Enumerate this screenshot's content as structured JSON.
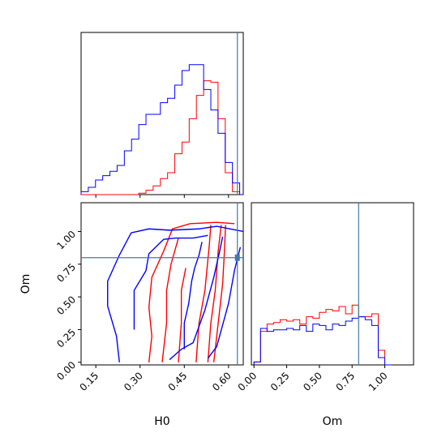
{
  "chart_data": {
    "type": "corner",
    "parameters": [
      "H0",
      "Om"
    ],
    "truth": {
      "H0": 0.63,
      "Om": 0.8
    },
    "truth_color": "#4477aa",
    "series": [
      {
        "color": "#ff0000"
      },
      {
        "color": "#0000ff"
      }
    ],
    "panels": [
      {
        "panel": "H0-marginal",
        "xlim": [
          0.1,
          0.65
        ],
        "bins": [
          0.1,
          0.1244,
          0.1489,
          0.1733,
          0.1978,
          0.2222,
          0.2467,
          0.2711,
          0.2956,
          0.32,
          0.3444,
          0.3689,
          0.3933,
          0.4178,
          0.4422,
          0.4667,
          0.4911,
          0.5156,
          0.54,
          0.5644,
          0.5889,
          0.6133,
          0.6378,
          0.65
        ],
        "series_counts": [
          {
            "color": "#ff0000",
            "counts": [
              0,
              0,
              0,
              0,
              0,
              0,
              0,
              0,
              0.01,
              0.03,
              0.06,
              0.11,
              0.15,
              0.28,
              0.36,
              0.52,
              0.68,
              0.78,
              0.77,
              0.52,
              0.15,
              0.02,
              0
            ]
          },
          {
            "color": "#0000ff",
            "counts": [
              0.02,
              0.05,
              0.1,
              0.13,
              0.16,
              0.2,
              0.3,
              0.38,
              0.48,
              0.55,
              0.55,
              0.63,
              0.66,
              0.75,
              0.85,
              0.89,
              0.89,
              0.72,
              0.58,
              0.42,
              0.22,
              0.08,
              0
            ]
          }
        ]
      },
      {
        "panel": "Om-marginal",
        "xlim": [
          -0.02,
          1.22
        ],
        "bins": [
          0.0,
          0.05,
          0.1,
          0.15,
          0.2,
          0.25,
          0.3,
          0.35,
          0.4,
          0.45,
          0.5,
          0.55,
          0.6,
          0.65,
          0.7,
          0.75,
          0.8,
          0.85,
          0.9,
          0.95,
          1.0,
          1.05
        ],
        "series_counts": [
          {
            "color": "#ff0000",
            "counts": [
              0.02,
              0.23,
              0.28,
              0.29,
              0.31,
              0.3,
              0.31,
              0.28,
              0.33,
              0.32,
              0.36,
              0.38,
              0.37,
              0.4,
              0.35,
              0.41,
              0.33,
              0.33,
              0.35,
              0.1,
              0
            ]
          },
          {
            "color": "#0000ff",
            "counts": [
              0.02,
              0.25,
              0.23,
              0.24,
              0.24,
              0.25,
              0.24,
              0.27,
              0.23,
              0.28,
              0.27,
              0.24,
              0.28,
              0.27,
              0.3,
              0.32,
              0.33,
              0.31,
              0.27,
              0.05,
              0
            ]
          }
        ]
      },
      {
        "panel": "H0-Om-joint",
        "xlim": [
          0.1,
          0.65
        ],
        "ylim": [
          -0.02,
          1.22
        ],
        "contours": [
          {
            "color": "#ff0000",
            "points": [
              [
                0.33,
                0.0
              ],
              [
                0.34,
                0.2
              ],
              [
                0.33,
                0.42
              ],
              [
                0.34,
                0.65
              ],
              [
                0.38,
                0.85
              ],
              [
                0.41,
                1.02
              ],
              [
                0.47,
                1.06
              ],
              [
                0.56,
                1.07
              ],
              [
                0.62,
                1.06
              ]
            ]
          },
          {
            "color": "#ff0000",
            "points": [
              [
                0.375,
                0.0
              ],
              [
                0.39,
                0.3
              ],
              [
                0.39,
                0.55
              ],
              [
                0.405,
                0.75
              ],
              [
                0.43,
                0.95
              ]
            ]
          },
          {
            "color": "#ff0000",
            "points": [
              [
                0.43,
                0.0
              ],
              [
                0.44,
                0.3
              ],
              [
                0.44,
                0.55
              ],
              [
                0.455,
                0.72
              ]
            ]
          },
          {
            "color": "#ff0000",
            "points": [
              [
                0.49,
                0.0
              ],
              [
                0.5,
                0.3
              ],
              [
                0.52,
                0.55
              ],
              [
                0.535,
                0.9
              ],
              [
                0.54,
                1.05
              ]
            ]
          },
          {
            "color": "#ff0000",
            "points": [
              [
                0.53,
                0.0
              ],
              [
                0.54,
                0.3
              ],
              [
                0.555,
                0.55
              ],
              [
                0.565,
                0.85
              ],
              [
                0.575,
                1.05
              ]
            ]
          },
          {
            "color": "#ff0000",
            "points": [
              [
                0.55,
                0.0
              ],
              [
                0.565,
                0.3
              ],
              [
                0.58,
                0.6
              ],
              [
                0.585,
                0.8
              ],
              [
                0.59,
                1.05
              ]
            ]
          },
          {
            "color": "#0000ff",
            "points": [
              [
                0.23,
                0.0
              ],
              [
                0.22,
                0.2
              ],
              [
                0.19,
                0.43
              ],
              [
                0.19,
                0.62
              ],
              [
                0.23,
                0.82
              ],
              [
                0.27,
                0.99
              ],
              [
                0.33,
                1.02
              ],
              [
                0.4,
                1.01
              ],
              [
                0.5,
                1.02
              ],
              [
                0.56,
                1.04
              ],
              [
                0.65,
                1.0
              ]
            ]
          },
          {
            "color": "#0000ff",
            "points": [
              [
                0.28,
                0.25
              ],
              [
                0.28,
                0.55
              ],
              [
                0.32,
                0.7
              ],
              [
                0.33,
                0.83
              ],
              [
                0.38,
                0.94
              ],
              [
                0.42,
                0.95
              ],
              [
                0.48,
                0.95
              ],
              [
                0.53,
                0.97
              ]
            ]
          },
          {
            "color": "#0000ff",
            "points": [
              [
                0.45,
                0.1
              ],
              [
                0.45,
                0.3
              ],
              [
                0.465,
                0.45
              ],
              [
                0.475,
                0.62
              ],
              [
                0.485,
                0.72
              ],
              [
                0.5,
                0.82
              ],
              [
                0.51,
                0.92
              ]
            ]
          },
          {
            "color": "#0000ff",
            "points": [
              [
                0.4,
                0.02
              ],
              [
                0.44,
                0.1
              ],
              [
                0.48,
                0.15
              ],
              [
                0.52,
                0.4
              ],
              [
                0.55,
                0.65
              ],
              [
                0.57,
                0.85
              ],
              [
                0.58,
                0.96
              ]
            ]
          },
          {
            "color": "#0000ff",
            "points": [
              [
                0.53,
                0.03
              ],
              [
                0.56,
                0.12
              ],
              [
                0.6,
                0.45
              ],
              [
                0.62,
                0.7
              ],
              [
                0.64,
                0.88
              ]
            ]
          }
        ]
      }
    ],
    "axis_labels": {
      "x_left": "H0",
      "x_right": "Om",
      "y_joint": "Om"
    },
    "xticks_H0": [
      "0.15",
      "0.30",
      "0.45",
      "0.60"
    ],
    "xticks_H0_values": [
      0.15,
      0.3,
      0.45,
      0.6
    ],
    "yticks_Om": [
      "0.00",
      "0.25",
      "0.50",
      "0.75",
      "1.00"
    ],
    "yticks_Om_values": [
      0.0,
      0.25,
      0.5,
      0.75,
      1.0
    ],
    "xticks_Om": [
      "0.00",
      "0.25",
      "0.50",
      "0.75",
      "1.00"
    ],
    "xticks_Om_values": [
      0.0,
      0.25,
      0.5,
      0.75,
      1.0
    ]
  }
}
